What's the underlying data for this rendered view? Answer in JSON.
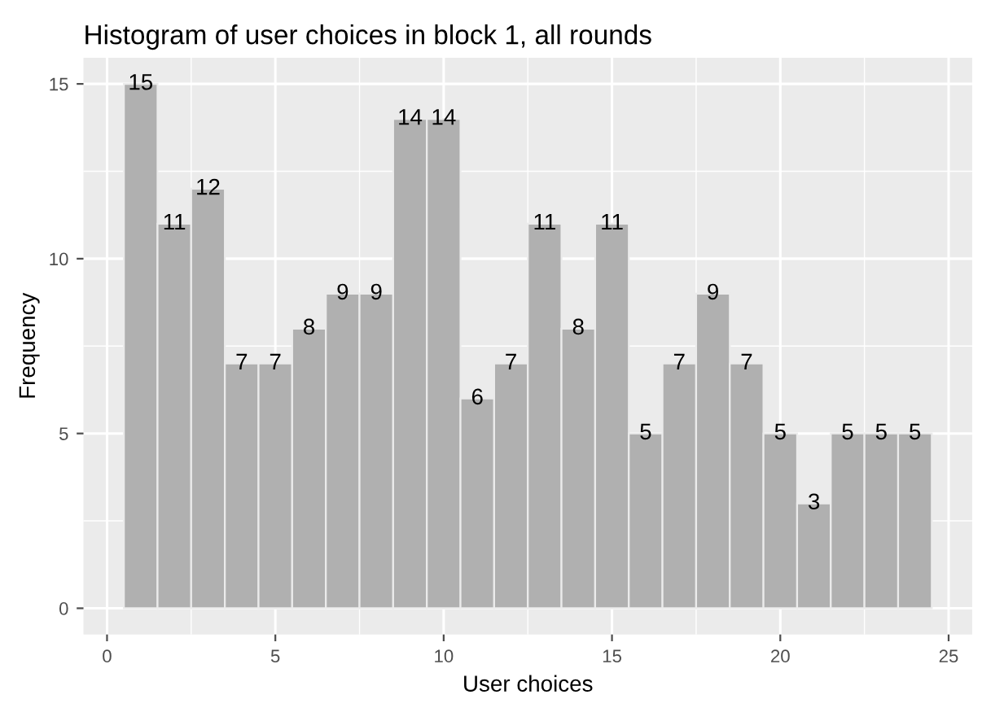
{
  "chart_data": {
    "type": "histogram",
    "title": "Histogram of user choices in block 1, all rounds",
    "xlabel": "User choices",
    "ylabel": "Frequency",
    "bins": [
      0.5,
      1.5,
      2.5,
      3.5,
      4.5,
      5.5,
      6.5,
      7.5,
      8.5,
      9.5,
      10.5,
      11.5,
      12.5,
      13.5,
      14.5,
      15.5,
      16.5,
      17.5,
      18.5,
      19.5,
      20.5,
      21.5,
      22.5,
      23.5,
      24.5
    ],
    "values": [
      15,
      11,
      12,
      7,
      7,
      8,
      9,
      9,
      14,
      14,
      6,
      7,
      11,
      8,
      11,
      5,
      7,
      9,
      7,
      5,
      3,
      5,
      5,
      5
    ],
    "color": "#b0b0b0",
    "xlim": [
      -0.7,
      25.7
    ],
    "xticks": [
      0,
      5,
      10,
      15,
      20,
      25
    ],
    "ylim": [
      -0.75,
      15.75
    ],
    "yticks": [
      0,
      5,
      10,
      15
    ],
    "grid": true,
    "data_labels": true
  }
}
